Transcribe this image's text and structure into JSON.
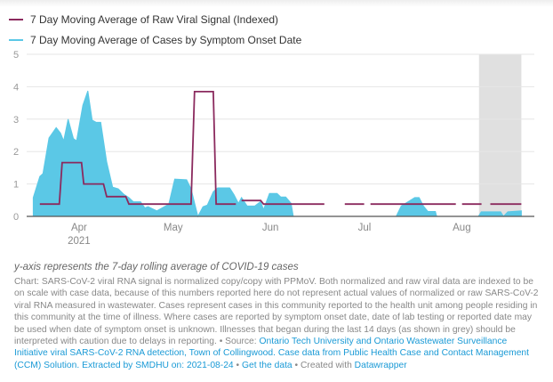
{
  "colors": {
    "viral": "#8b2a5e",
    "cases": "#5bc8e6",
    "grey_band": "#e0e0e0",
    "grid": "#e6e6e6",
    "axis": "#555555"
  },
  "chart_data": {
    "type": "area",
    "x_unit": "days since 2021-03-01",
    "xlim": [
      14.3,
      175
    ],
    "ylim": [
      0,
      5
    ],
    "yticks": [
      0,
      1,
      2,
      3,
      4,
      5
    ],
    "xticks": [
      {
        "day": 31,
        "label": "Apr",
        "sub": "2021"
      },
      {
        "day": 61,
        "label": "May"
      },
      {
        "day": 92,
        "label": "Jun"
      },
      {
        "day": 122,
        "label": "Jul"
      },
      {
        "day": 153,
        "label": "Aug"
      }
    ],
    "grid": true,
    "legend_placement": "top-left",
    "ylabel_note": "y-axis represents the 7-day rolling average of COVID-19 cases",
    "grey_band": {
      "from": 158.5,
      "to": 172,
      "meaning": "last 14 days"
    },
    "series": [
      {
        "name": "7 Day Moving Average of Raw Viral Signal (Indexed)",
        "type": "step-line",
        "points": [
          [
            18.5,
            0.38
          ],
          [
            24.7,
            0.38
          ],
          [
            25.6,
            1.66
          ],
          [
            31.8,
            1.66
          ],
          [
            32.5,
            1.0
          ],
          [
            38.8,
            1.0
          ],
          [
            39.8,
            0.61
          ],
          [
            45.9,
            0.61
          ],
          [
            46.9,
            0.38
          ],
          [
            66.7,
            0.38
          ],
          [
            67.8,
            3.85
          ],
          [
            73.8,
            3.85
          ],
          [
            74.7,
            0.38
          ],
          [
            81,
            0.38
          ],
          null,
          [
            82.8,
            0.49
          ],
          [
            88.9,
            0.49
          ],
          [
            89.8,
            0.38
          ],
          [
            109.2,
            0.38
          ],
          null,
          [
            115.7,
            0.38
          ],
          [
            121.9,
            0.38
          ],
          null,
          [
            123.9,
            0.38
          ],
          [
            151.1,
            0.38
          ],
          null,
          [
            153.1,
            0.38
          ],
          [
            159.3,
            0.38
          ],
          null,
          [
            162.1,
            0.38
          ],
          [
            172,
            0.38
          ]
        ]
      },
      {
        "name": "7 Day Moving Average of Cases by Symptom Onset Date",
        "type": "area",
        "points": [
          [
            16.4,
            0.58
          ],
          [
            18.5,
            1.23
          ],
          [
            19.5,
            1.32
          ],
          [
            21.4,
            2.42
          ],
          [
            23.7,
            2.74
          ],
          [
            25.1,
            2.57
          ],
          [
            26.1,
            2.33
          ],
          [
            27.5,
            3.0
          ],
          [
            29.2,
            2.4
          ],
          [
            30.2,
            2.33
          ],
          [
            32.2,
            3.43
          ],
          [
            33.8,
            3.87
          ],
          [
            35.2,
            2.97
          ],
          [
            36.5,
            2.9
          ],
          [
            37.9,
            2.9
          ],
          [
            39.8,
            1.68
          ],
          [
            41.7,
            0.9
          ],
          [
            43.5,
            0.85
          ],
          [
            45.4,
            0.67
          ],
          [
            46.9,
            0.58
          ],
          [
            48.3,
            0.45
          ],
          [
            50.6,
            0.45
          ],
          [
            52,
            0.26
          ],
          [
            53,
            0.3
          ],
          [
            55.8,
            0.17
          ],
          [
            58.2,
            0.3
          ],
          [
            59.6,
            0.37
          ],
          [
            61.5,
            1.15
          ],
          [
            65.3,
            1.13
          ],
          [
            66.7,
            0.85
          ],
          [
            68.9,
            0
          ],
          [
            70.5,
            0.3
          ],
          [
            71.9,
            0.35
          ],
          [
            73.8,
            0.76
          ],
          [
            75.2,
            0.88
          ],
          [
            79,
            0.88
          ],
          [
            80.4,
            0.67
          ],
          [
            81.8,
            0.4
          ],
          [
            82.8,
            0.58
          ],
          [
            84.6,
            0.32
          ],
          [
            87,
            0.32
          ],
          [
            88.9,
            0.46
          ],
          [
            89.8,
            0.21
          ],
          [
            91.7,
            0.71
          ],
          [
            94.1,
            0.71
          ],
          [
            95.3,
            0.6
          ],
          [
            96.9,
            0.6
          ],
          [
            98.6,
            0.4
          ],
          [
            99.3,
            0
          ],
          [
            132.1,
            0
          ],
          [
            133.7,
            0.32
          ],
          [
            138,
            0.58
          ],
          [
            139.4,
            0.58
          ],
          [
            140.8,
            0.32
          ],
          [
            142.2,
            0.15
          ],
          [
            144.6,
            0.15
          ],
          [
            145,
            0
          ],
          [
            158.3,
            0
          ],
          [
            159.2,
            0.14
          ],
          [
            165.4,
            0.14
          ],
          [
            166.3,
            0
          ],
          [
            167.7,
            0.14
          ],
          [
            172,
            0.17
          ]
        ]
      }
    ]
  },
  "legend": {
    "viral": "7 Day Moving Average of Raw Viral Signal (Indexed)",
    "cases": "7 Day Moving Average of Cases by Symptom Onset Date"
  },
  "notes": {
    "subtitle": "y-axis represents the 7-day rolling average of COVID-19 cases",
    "chart_text": "Chart: SARS-CoV-2 viral RNA signal is normalized copy/copy with PPMoV. Both normalized and raw viral data are indexed to be on scale with case data, because of this numbers reported here do not represent actual values of normalized or raw SARS-CoV-2 viral RNA measured in wastewater. Cases represent cases in this community reported to the health unit among people residing in this community at the time of illness. Where cases are reported by symptom onset date, date of lab testing or reported date may be used when date of symptom onset is unknown. Illnesses that began during the last 14 days (as shown in grey) should be interpreted with caution due to delays in reporting.",
    "source_prefix": " • Source: ",
    "source_link": "Ontario Tech University and Ontario Wastewater Surveillance Initiative viral SARS-CoV-2 RNA detection, Town of Collingwood. Case data from Public Health Case and Contact Management (CCM) Solution. Extracted by SMDHU on: 2021-08-24",
    "sep": " • ",
    "get_data": "Get the data",
    "created_with": " • Created with ",
    "datawrapper": "Datawrapper"
  }
}
